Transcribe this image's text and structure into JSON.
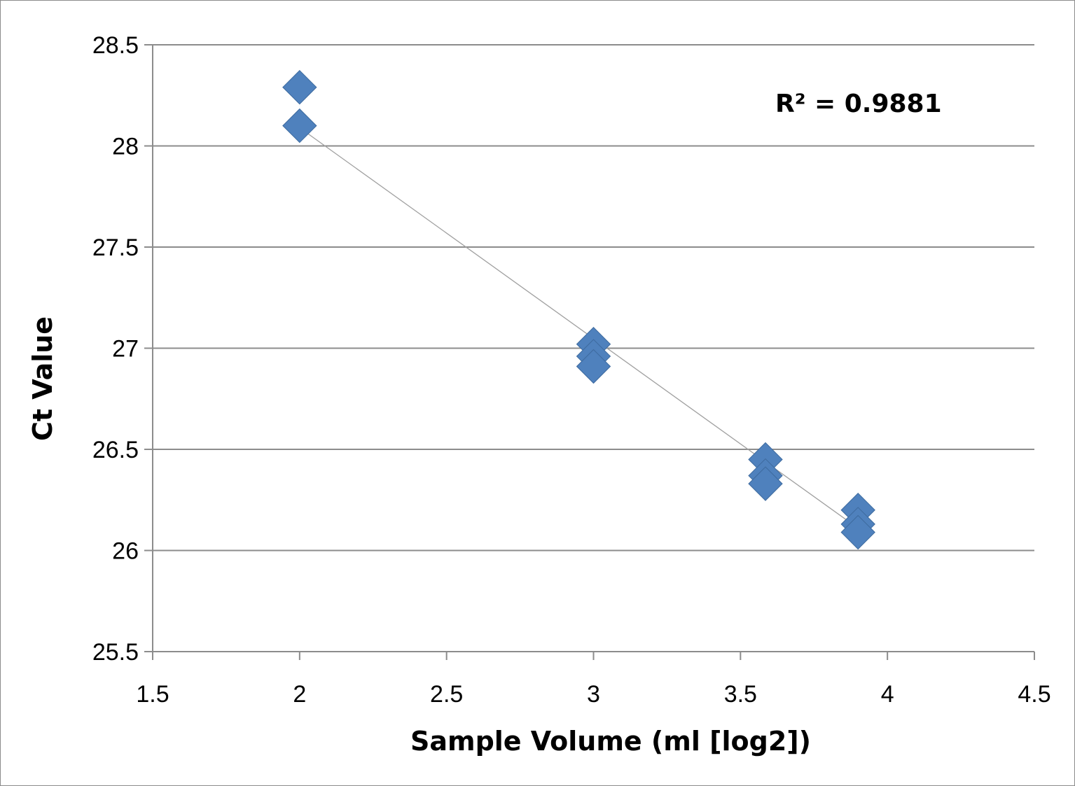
{
  "chart_data": {
    "type": "scatter",
    "xlabel": "Sample Volume (ml [log2])",
    "ylabel": "Ct Value",
    "xlim": [
      1.5,
      4.5
    ],
    "ylim": [
      25.5,
      28.5
    ],
    "x_ticks": [
      "1.5",
      "2",
      "2.5",
      "3",
      "3.5",
      "4",
      "4.5"
    ],
    "y_ticks": [
      "25.5",
      "26",
      "26.5",
      "27",
      "27.5",
      "28",
      "28.5"
    ],
    "grid": "horizontal",
    "legend": "none",
    "marker": "diamond",
    "marker_color": "#4f81bd",
    "trendline_color": "#a0a0a0",
    "series": [
      {
        "x": [
          2,
          2,
          3,
          3,
          3,
          3.585,
          3.585,
          3.585,
          3.9,
          3.9,
          3.9
        ],
        "y": [
          28.29,
          28.1,
          27.02,
          26.96,
          26.91,
          26.45,
          26.37,
          26.33,
          26.2,
          26.13,
          26.09
        ]
      }
    ],
    "trendline": {
      "x": [
        2,
        3.9
      ],
      "y": [
        28.09,
        26.11
      ]
    },
    "annotation": "R² = 0.9881"
  }
}
